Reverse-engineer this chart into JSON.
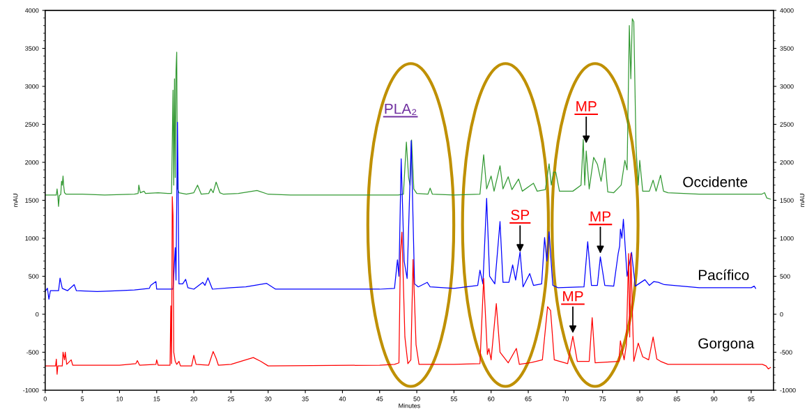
{
  "chart_data": {
    "type": "line",
    "xlabel": "Minutes",
    "ylabel": "mAU",
    "y2label": "mAU",
    "xlim": [
      0,
      98
    ],
    "xticks": [
      0,
      5,
      10,
      15,
      20,
      25,
      30,
      35,
      40,
      45,
      50,
      55,
      60,
      65,
      70,
      75,
      80,
      85,
      90,
      95
    ],
    "ylim": [
      -1000,
      4000
    ],
    "yticks": [
      -1000,
      -500,
      0,
      500,
      1000,
      1500,
      2000,
      2500,
      3000,
      3500,
      4000
    ],
    "y2lim": [
      -1000,
      4000
    ],
    "y2ticks": [
      -1000,
      -500,
      0,
      500,
      1000,
      1500,
      2000,
      2500,
      3000,
      3500,
      4000
    ],
    "grid": false,
    "legend": false,
    "marker": "none",
    "line_style": "solid",
    "annotations": [
      "PLA₂",
      {
        "text": "SP",
        "x": 63.9,
        "y": 820
      },
      {
        "text": "MP",
        "x": 74.7,
        "y": 800
      },
      {
        "text": "MP",
        "x": 71.0,
        "y": -250
      },
      {
        "text": "MP",
        "x": 72.8,
        "y": 2250
      }
    ],
    "series": [
      {
        "name": "Occidente",
        "color": "#339933",
        "x": [
          0,
          1.5,
          1.6,
          1.7,
          1.8,
          1.9,
          2.1,
          2.2,
          2.3,
          2.4,
          2.5,
          2.6,
          2.8,
          5,
          8,
          12,
          12.5,
          12.6,
          12.8,
          13.3,
          13.5,
          15.2,
          16.5,
          17.0,
          17.2,
          17.3,
          17.4,
          17.5,
          17.6,
          17.7,
          17.8,
          18,
          19,
          20,
          20.5,
          21,
          22,
          22.3,
          22.6,
          23,
          23.5,
          24,
          26,
          28.5,
          30,
          33,
          45,
          47.5,
          48.2,
          48.6,
          48.9,
          49.1,
          49.3,
          49.6,
          50,
          51.5,
          51.8,
          52.1,
          55,
          58.5,
          59.0,
          59.4,
          60.0,
          60.4,
          61.2,
          61.6,
          62.3,
          62.8,
          63.7,
          64.2,
          65.7,
          66.2,
          67.3,
          67.8,
          68.1,
          68.4,
          68.7,
          69.2,
          71,
          72.1,
          72.4,
          72.6,
          72.8,
          73.2,
          73.8,
          74.3,
          74.8,
          75.3,
          75.7,
          76.5,
          77.5,
          78.0,
          78.3,
          78.6,
          78.8,
          79.0,
          79.2,
          79.5,
          79.8,
          80.0,
          80.4,
          81.3,
          81.8,
          82.2,
          82.8,
          83.2,
          83.8,
          88,
          96.4,
          96.8,
          97.1,
          97.6
        ],
        "values": [
          1570,
          1570,
          1650,
          1560,
          1420,
          1560,
          1580,
          1750,
          1700,
          1820,
          1680,
          1600,
          1580,
          1580,
          1570,
          1580,
          1590,
          1700,
          1600,
          1620,
          1590,
          1600,
          1590,
          1590,
          2950,
          1700,
          3100,
          1800,
          3200,
          3450,
          1650,
          1600,
          1580,
          1600,
          1700,
          1580,
          1590,
          1650,
          1600,
          1740,
          1600,
          1580,
          1590,
          1630,
          1580,
          1570,
          1570,
          1570,
          1580,
          2267,
          1800,
          1700,
          2294,
          1650,
          1590,
          1580,
          1660,
          1580,
          1570,
          1580,
          2100,
          1650,
          1820,
          1620,
          1955,
          1650,
          1810,
          1640,
          1780,
          1620,
          1725,
          1620,
          1640,
          1980,
          1700,
          1870,
          1870,
          1620,
          1620,
          1700,
          2300,
          1700,
          2150,
          1650,
          2065,
          1975,
          1750,
          2055,
          1610,
          1600,
          1700,
          2025,
          1900,
          3800,
          3100,
          3890,
          3850,
          2200,
          1700,
          2025,
          1620,
          1620,
          1765,
          1620,
          1830,
          1620,
          1600,
          1580,
          1580,
          1600,
          1530,
          1515
        ]
      },
      {
        "name": "Pacífico",
        "color": "#0000ff",
        "x": [
          0,
          0.3,
          0.5,
          0.7,
          1.8,
          2.0,
          2.3,
          3.0,
          3.9,
          4.2,
          7,
          10,
          12,
          14,
          14.2,
          14.9,
          15.0,
          17.2,
          17.5,
          17.6,
          17.8,
          17.9,
          18.0,
          18.5,
          18.9,
          19.2,
          20,
          21.2,
          21.5,
          21.9,
          22.5,
          25,
          27,
          29.8,
          31,
          45,
          47,
          47.4,
          47.6,
          47.9,
          48.3,
          48.7,
          49.25,
          49.7,
          50.2,
          51.4,
          51.8,
          55,
          58.2,
          58.5,
          58.9,
          59.4,
          59.8,
          60.5,
          61.2,
          61.6,
          62.4,
          62.9,
          63.3,
          63.9,
          64.3,
          65.2,
          65.7,
          66.8,
          67.2,
          67.5,
          67.8,
          68.3,
          69,
          72.5,
          73.0,
          73.5,
          74.3,
          74.7,
          75.3,
          76.5,
          77.1,
          77.3,
          77.4,
          77.6,
          77.8,
          78.3,
          78.9,
          79.4,
          80.7,
          81.3,
          81.9,
          82.5,
          83.3,
          88,
          95,
          95.4,
          95.6
        ],
        "values": [
          300,
          343,
          197,
          310,
          310,
          476,
          340,
          310,
          390,
          310,
          300,
          310,
          320,
          340,
          380,
          430,
          330,
          330,
          877,
          450,
          2528,
          1500,
          400,
          400,
          460,
          350,
          330,
          420,
          380,
          480,
          330,
          350,
          360,
          406,
          330,
          330,
          340,
          717,
          500,
          2046,
          700,
          470,
          2285,
          400,
          360,
          420,
          360,
          340,
          380,
          580,
          400,
          1525,
          500,
          400,
          1220,
          420,
          420,
          650,
          450,
          820,
          360,
          535,
          380,
          400,
          1010,
          700,
          1085,
          380,
          350,
          360,
          955,
          380,
          380,
          755,
          380,
          370,
          800,
          900,
          1120,
          1000,
          1250,
          500,
          815,
          370,
          455,
          380,
          430,
          420,
          390,
          350,
          350,
          370,
          340
        ]
      },
      {
        "name": "Gorgona",
        "color": "#ff0000",
        "x": [
          0,
          1.4,
          1.5,
          1.6,
          1.7,
          2.3,
          2.4,
          2.6,
          2.7,
          2.9,
          3.5,
          3.7,
          10,
          12.2,
          12.4,
          12.7,
          14.9,
          15.0,
          15.2,
          16.8,
          16.9,
          17.0,
          17.1,
          17.2,
          17.3,
          17.5,
          17.7,
          18,
          18.2,
          19.7,
          20,
          20.3,
          22,
          22.6,
          23,
          23.3,
          25,
          27,
          28,
          29,
          30,
          45,
          47,
          47.6,
          47.8,
          48.0,
          48.4,
          48.8,
          49.2,
          49.5,
          49.9,
          50.3,
          55,
          58.5,
          59.0,
          59.5,
          59.7,
          60.0,
          60.7,
          61.2,
          62.3,
          63.4,
          63.8,
          65.2,
          66.9,
          67.6,
          68.0,
          68.5,
          70.3,
          71.0,
          71.6,
          73.2,
          73.6,
          74.0,
          77.2,
          77.4,
          77.9,
          78.2,
          78.5,
          78.65,
          78.8,
          79.2,
          79.8,
          80.4,
          81.2,
          81.8,
          82.3,
          82.8,
          83.8,
          96.5,
          97,
          97.3,
          97.6
        ],
        "values": [
          -680,
          -680,
          -590,
          -790,
          -680,
          -680,
          -500,
          -600,
          -500,
          -660,
          -600,
          -670,
          -670,
          -650,
          -610,
          -670,
          -660,
          -600,
          -670,
          -670,
          110,
          -650,
          1550,
          1300,
          -500,
          -620,
          -660,
          -620,
          -680,
          -680,
          -540,
          -660,
          -670,
          -490,
          -580,
          -670,
          -660,
          -600,
          -570,
          -620,
          -680,
          -670,
          -660,
          -640,
          800,
          1080,
          -300,
          -650,
          -600,
          720,
          -400,
          -660,
          -660,
          -650,
          470,
          -530,
          -450,
          -600,
          140,
          -500,
          -640,
          -450,
          -660,
          -640,
          -600,
          100,
          50,
          -600,
          -650,
          -290,
          -620,
          -620,
          -45,
          -640,
          -620,
          -350,
          -600,
          -400,
          800,
          -300,
          800,
          -620,
          -380,
          -560,
          -600,
          -300,
          -590,
          -620,
          -660,
          -660,
          -680,
          -720,
          -700
        ]
      }
    ]
  }
}
